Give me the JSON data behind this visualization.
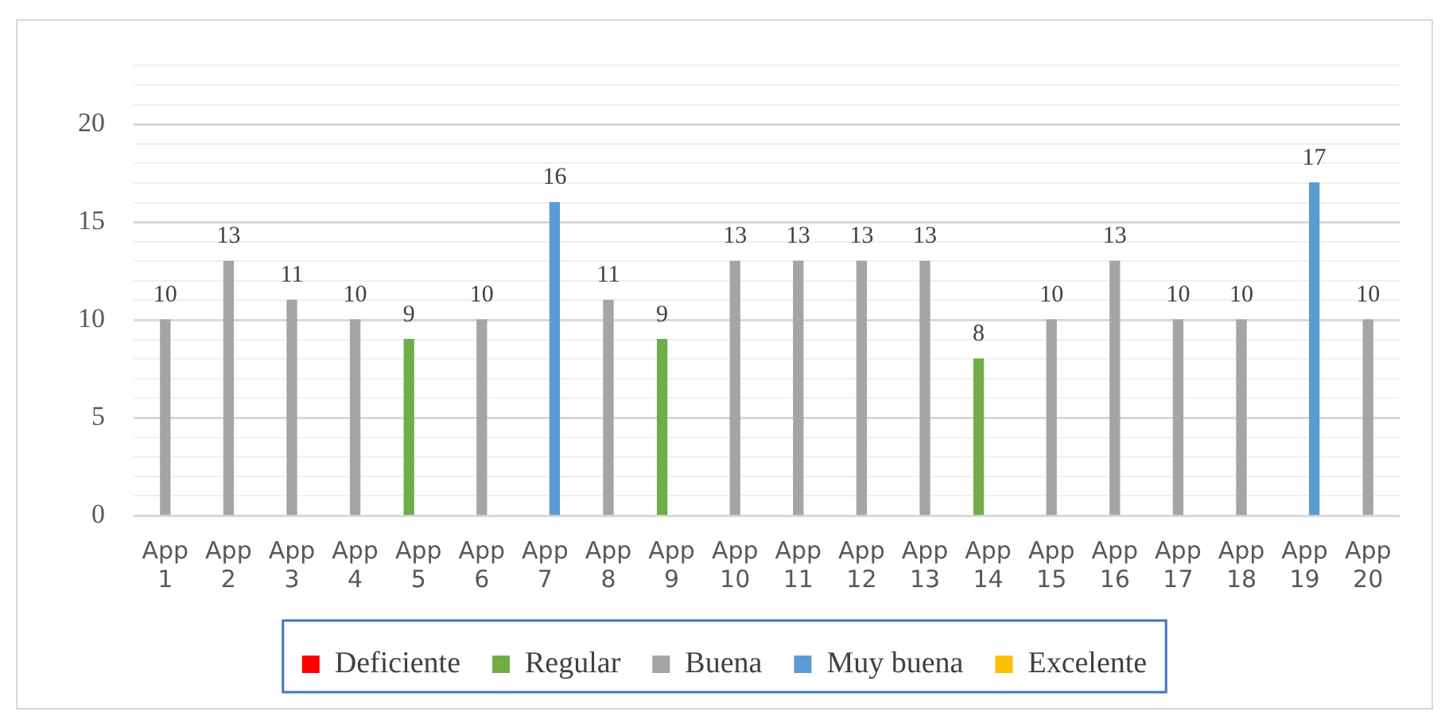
{
  "chart_data": {
    "type": "bar",
    "categories": [
      "App 1",
      "App 2",
      "App 3",
      "App 4",
      "App 5",
      "App 6",
      "App 7",
      "App 8",
      "App 9",
      "App 10",
      "App 11",
      "App 12",
      "App 13",
      "App 14",
      "App 15",
      "App 16",
      "App 17",
      "App 18",
      "App 19",
      "App 20"
    ],
    "series": [
      {
        "name": "Deficiente",
        "color": "#ff0000",
        "values": [
          null,
          null,
          null,
          null,
          null,
          null,
          null,
          null,
          null,
          null,
          null,
          null,
          null,
          null,
          null,
          null,
          null,
          null,
          null,
          null
        ]
      },
      {
        "name": "Regular",
        "color": "#70ad47",
        "values": [
          null,
          null,
          null,
          null,
          9,
          null,
          null,
          null,
          9,
          null,
          null,
          null,
          null,
          8,
          null,
          null,
          null,
          null,
          null,
          null
        ]
      },
      {
        "name": "Buena",
        "color": "#a5a5a5",
        "values": [
          10,
          13,
          11,
          10,
          null,
          10,
          null,
          11,
          null,
          13,
          13,
          13,
          13,
          null,
          10,
          13,
          10,
          10,
          null,
          10
        ]
      },
      {
        "name": "Muy buena",
        "color": "#5b9bd5",
        "values": [
          null,
          null,
          null,
          null,
          null,
          null,
          16,
          null,
          null,
          null,
          null,
          null,
          null,
          null,
          null,
          null,
          null,
          null,
          17,
          null
        ]
      },
      {
        "name": "Excelente",
        "color": "#ffc000",
        "values": [
          null,
          null,
          null,
          null,
          null,
          null,
          null,
          null,
          null,
          null,
          null,
          null,
          null,
          null,
          null,
          null,
          null,
          null,
          null,
          null
        ]
      }
    ],
    "ylim": [
      0,
      23
    ],
    "yticks": [
      0,
      {
        "value": 1,
        "label": null
      },
      {
        "value": 2,
        "label": null
      },
      {
        "value": 3,
        "label": null
      },
      {
        "value": 4,
        "label": null
      },
      5,
      {
        "value": 6,
        "label": null
      },
      {
        "value": 7,
        "label": null
      },
      {
        "value": 8,
        "label": null
      },
      {
        "value": 9,
        "label": null
      },
      10,
      {
        "value": 11,
        "label": null
      },
      {
        "value": 12,
        "label": null
      },
      {
        "value": 13,
        "label": null
      },
      {
        "value": 14,
        "label": null
      },
      15,
      {
        "value": 16,
        "label": null
      },
      {
        "value": 17,
        "label": null
      },
      {
        "value": 18,
        "label": null
      },
      {
        "value": 19,
        "label": null
      },
      20,
      {
        "value": 21,
        "label": null
      },
      {
        "value": 22,
        "label": null
      },
      {
        "value": 23,
        "label": null
      }
    ],
    "grid": "y",
    "legend": "bottom",
    "data_labels": true
  }
}
